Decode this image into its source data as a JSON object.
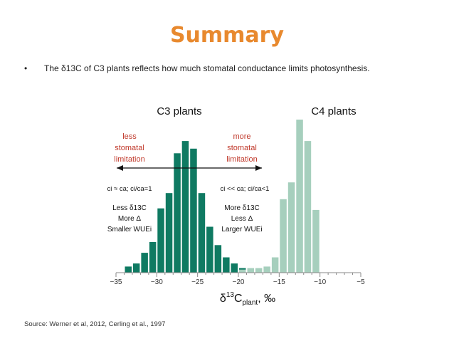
{
  "slide": {
    "title": "Summary",
    "bullet_marker": "•",
    "bullet_text": "The δ13C of C3 plants reflects how much stomatal conductance limits photosynthesis.",
    "source": "Source: Werner et al, 2012, Cerling et al., 1997"
  },
  "colors": {
    "title": "#e8892e",
    "c3_bars": "#0f7a62",
    "c4_bars": "#a6cfbd",
    "annotation_red": "#c0392b"
  },
  "chart_data": {
    "type": "bar",
    "xlim": [
      -35,
      -5
    ],
    "ylim": [
      0,
      1
    ],
    "bin_width": 1,
    "x_ticks": [
      -35,
      -30,
      -25,
      -20,
      -15,
      -10,
      -5
    ],
    "x_tick_labels": [
      "−35",
      "−30",
      "−25",
      "−20",
      "−15",
      "−10",
      "−5"
    ],
    "xlabel": "δ13Cplant, ‰",
    "grid": false,
    "series": [
      {
        "name": "C3 plants",
        "color": "#0f7a62",
        "bins_left_edge": [
          -34,
          -33,
          -32,
          -31,
          -30,
          -29,
          -28,
          -27,
          -26,
          -25,
          -24,
          -23,
          -22,
          -21,
          -20
        ],
        "values": [
          0.04,
          0.06,
          0.13,
          0.2,
          0.42,
          0.52,
          0.78,
          0.86,
          0.81,
          0.52,
          0.3,
          0.18,
          0.1,
          0.06,
          0.03
        ]
      },
      {
        "name": "C4 plants",
        "color": "#a6cfbd",
        "bins_left_edge": [
          -20,
          -19,
          -18,
          -17,
          -16,
          -15,
          -14,
          -13,
          -12,
          -11
        ],
        "values": [
          0.02,
          0.03,
          0.03,
          0.04,
          0.1,
          0.48,
          0.59,
          1.0,
          0.86,
          0.41
        ]
      }
    ],
    "labels": {
      "c3": "C3 plants",
      "c4": "C4 plants",
      "xlabel_main": "δ",
      "xlabel_sup": "13",
      "xlabel_c": "C",
      "xlabel_sub": "plant",
      "xlabel_unit": ", ‰"
    },
    "annotations": {
      "left_red": [
        "less",
        "stomatal",
        "limitation"
      ],
      "right_red": [
        "more",
        "stomatal",
        "limitation"
      ],
      "left_ratio": "ci ≈ ca; ci/ca=1",
      "right_ratio": "ci << ca; ci/ca<1",
      "left_effects": [
        "Less δ13C",
        "More Δ",
        "Smaller WUEi"
      ],
      "right_effects": [
        "More δ13C",
        "Less Δ",
        "Larger WUEi"
      ]
    }
  }
}
